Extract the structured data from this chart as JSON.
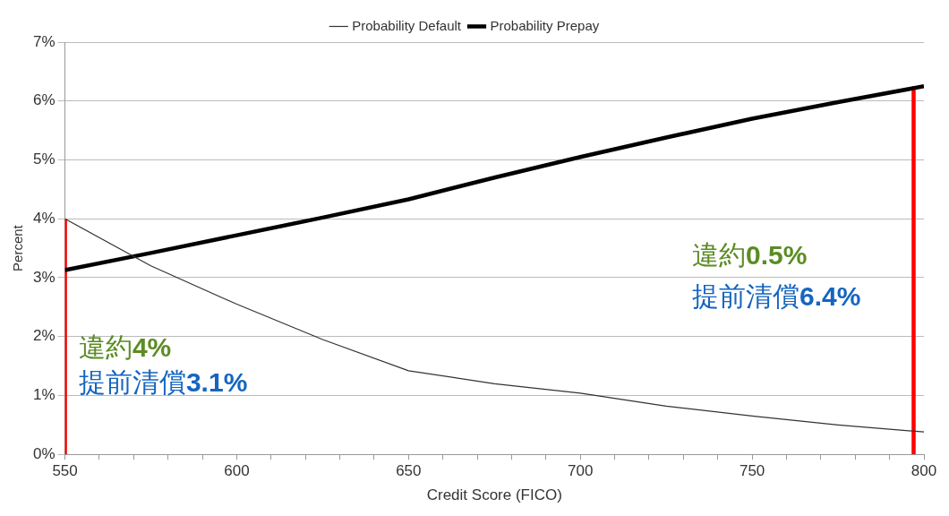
{
  "chart_data": {
    "type": "line",
    "xlabel": "Credit Score (FICO)",
    "ylabel": "Percent",
    "xlim": [
      550,
      800
    ],
    "xticks": [
      550,
      {
        "value": 560,
        "label": null
      },
      {
        "value": 570,
        "label": null
      },
      {
        "value": 580,
        "label": null
      },
      {
        "value": 590,
        "label": null
      },
      600,
      {
        "value": 610,
        "label": null
      },
      {
        "value": 620,
        "label": null
      },
      {
        "value": 630,
        "label": null
      },
      {
        "value": 640,
        "label": null
      },
      650,
      {
        "value": 660,
        "label": null
      },
      {
        "value": 670,
        "label": null
      },
      {
        "value": 680,
        "label": null
      },
      {
        "value": 690,
        "label": null
      },
      700,
      {
        "value": 710,
        "label": null
      },
      {
        "value": 720,
        "label": null
      },
      {
        "value": 730,
        "label": null
      },
      {
        "value": 740,
        "label": null
      },
      750,
      {
        "value": 760,
        "label": null
      },
      {
        "value": 770,
        "label": null
      },
      {
        "value": 780,
        "label": null
      },
      {
        "value": 790,
        "label": null
      },
      800
    ],
    "ylim": [
      0,
      7
    ],
    "yticks": [
      {
        "value": 0,
        "label": "0%"
      },
      {
        "value": 1,
        "label": "1%"
      },
      {
        "value": 2,
        "label": "2%"
      },
      {
        "value": 3,
        "label": "3%"
      },
      {
        "value": 4,
        "label": "4%"
      },
      {
        "value": 5,
        "label": "5%"
      },
      {
        "value": 6,
        "label": "6%"
      },
      {
        "value": 7,
        "label": "7%"
      }
    ],
    "grid": "y",
    "legend": "top",
    "marker": "none",
    "series": [
      {
        "name": "Probability Default",
        "color": "#333333",
        "x": [
          550,
          575,
          600,
          625,
          650,
          675,
          700,
          725,
          750,
          775,
          800
        ],
        "values": [
          4.0,
          3.2,
          2.55,
          1.95,
          1.42,
          1.2,
          1.04,
          0.82,
          0.65,
          0.5,
          0.38
        ]
      },
      {
        "name": "Probability Prepay",
        "color": "#000000",
        "x": [
          550,
          575,
          600,
          625,
          650,
          675,
          700,
          725,
          750,
          775,
          800
        ],
        "values": [
          3.13,
          3.42,
          3.72,
          4.02,
          4.33,
          4.7,
          5.05,
          5.38,
          5.7,
          5.98,
          6.25
        ]
      },
      {
        "color": "#ff0000",
        "x": [
          550,
          550
        ],
        "values": [
          0,
          4
        ]
      },
      {
        "color": "#ff0000",
        "x": [
          797,
          797
        ],
        "values": [
          0,
          6.25
        ]
      }
    ],
    "annotations": [
      "違約4%",
      "提前清償3.1%",
      "違約0.5%",
      "提前清償6.4%"
    ]
  }
}
